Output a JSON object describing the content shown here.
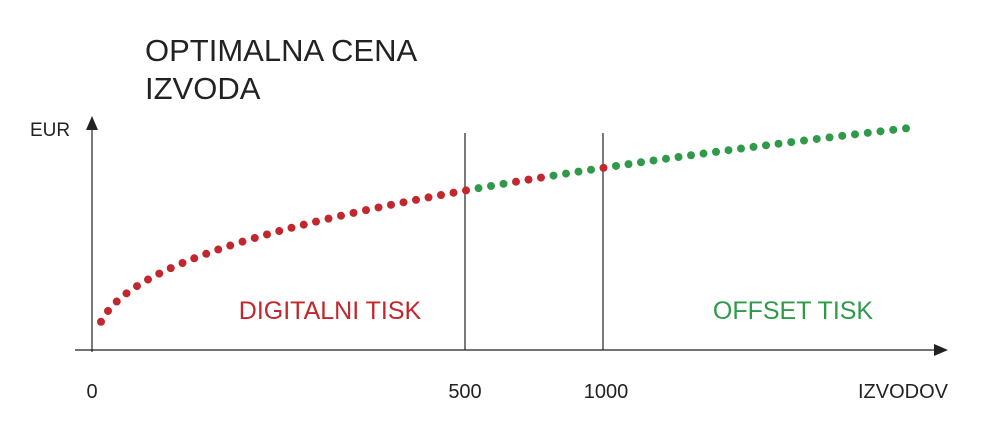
{
  "title": [
    "OPTIMALNA CENA",
    "IZVODA"
  ],
  "y_axis_label": "EUR",
  "x_axis_label": "IZVODOV",
  "x_tick_labels": [
    "0",
    "500",
    "1000"
  ],
  "regions": [
    {
      "label": "DIGITALNI TISK",
      "color": "#c1272d"
    },
    {
      "label": "OFFSET TISK",
      "color": "#2f9a4a"
    }
  ]
}
